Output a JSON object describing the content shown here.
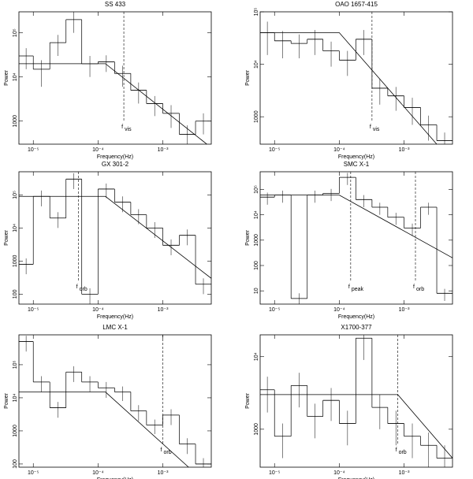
{
  "chart_data": [
    {
      "type": "histogram",
      "title": "SS 433",
      "x_label": "Frequency(Hz)",
      "y_label": "Power",
      "log_x": true,
      "log_y": true,
      "xlim": [
        6e-06,
        0.0056
      ],
      "ylim": [
        300,
        300000
      ],
      "xticks": [
        {
          "value": 1e-05,
          "label": "10⁻⁵"
        },
        {
          "value": 0.0001,
          "label": "10⁻⁴"
        },
        {
          "value": 0.001,
          "label": "10⁻³"
        }
      ],
      "yticks": [
        {
          "value": 100000,
          "label": "10⁵"
        },
        {
          "value": 10000,
          "label": "10⁴"
        },
        1000
      ],
      "bins": [
        6e-06,
        1e-05,
        1.8e-05,
        3.2e-05,
        5.6e-05,
        0.0001,
        0.00018,
        0.00032,
        0.00056,
        0.001,
        0.0018,
        0.0032,
        0.0056
      ],
      "values": [
        30000,
        15000,
        60000,
        200000,
        20000,
        22000,
        12000,
        5000,
        2500,
        1500,
        500,
        1000
      ],
      "errors": [
        15000,
        9000,
        30000,
        100000,
        10000,
        9000,
        6000,
        2500,
        1200,
        800,
        300,
        500
      ],
      "model": {
        "x": [
          6e-06,
          0.00013,
          0.0056
        ],
        "y": [
          20000,
          20000,
          250
        ]
      },
      "markers": [
        {
          "x": 0.00025,
          "label": "f",
          "sub": "vis"
        }
      ]
    },
    {
      "type": "histogram",
      "title": "OAO 1657-415",
      "x_label": "Frequency(Hz)",
      "y_label": "Power",
      "log_x": true,
      "log_y": true,
      "xlim": [
        6e-06,
        0.0056
      ],
      "ylim": [
        300,
        100000
      ],
      "xticks": [
        {
          "value": 1e-05,
          "label": "10⁻⁵"
        },
        {
          "value": 0.0001,
          "label": "10⁻⁴"
        },
        {
          "value": 0.001,
          "label": "10⁻³"
        }
      ],
      "yticks": [
        {
          "value": 100000,
          "label": "10⁵"
        },
        {
          "value": 10000,
          "label": "10⁴"
        },
        1000
      ],
      "bins": [
        6e-06,
        1e-05,
        1.8e-05,
        3.2e-05,
        5.6e-05,
        0.0001,
        0.00018,
        0.00032,
        0.00056,
        0.001,
        0.0018,
        0.0032,
        0.0056
      ],
      "values": [
        40000,
        28000,
        25000,
        30000,
        18000,
        12000,
        30000,
        3500,
        2500,
        1500,
        700,
        350
      ],
      "errors": [
        25000,
        15000,
        12000,
        15000,
        9000,
        6000,
        15000,
        1800,
        1200,
        800,
        350,
        150
      ],
      "model": {
        "x": [
          6e-06,
          0.0001,
          0.0032
        ],
        "y": [
          40000,
          40000,
          300
        ]
      },
      "markers": [
        {
          "x": 0.00032,
          "label": "f",
          "sub": "vis"
        }
      ]
    },
    {
      "type": "histogram",
      "title": "GX 301-2",
      "x_label": "Frequency(Hz)",
      "y_label": "Power",
      "log_x": true,
      "log_y": true,
      "xlim": [
        6e-06,
        0.0056
      ],
      "ylim": [
        50,
        500000
      ],
      "xticks": [
        {
          "value": 1e-05,
          "label": "10⁻⁵"
        },
        {
          "value": 0.0001,
          "label": "10⁻⁴"
        },
        {
          "value": 0.001,
          "label": "10⁻³"
        }
      ],
      "yticks": [
        {
          "value": 100000,
          "label": "10⁵"
        },
        {
          "value": 10000,
          "label": "10⁴"
        },
        1000,
        100
      ],
      "bins": [
        6e-06,
        1e-05,
        1.8e-05,
        3.2e-05,
        5.6e-05,
        0.0001,
        0.00018,
        0.00032,
        0.00056,
        0.001,
        0.0018,
        0.0032,
        0.0056
      ],
      "values": [
        800,
        90000,
        20000,
        300000,
        100,
        150000,
        60000,
        25000,
        10000,
        3000,
        6000,
        200
      ],
      "errors": [
        400,
        45000,
        10000,
        150000,
        50,
        70000,
        30000,
        12000,
        5000,
        1500,
        3000,
        100
      ],
      "model": {
        "x": [
          6e-06,
          0.00013,
          0.0056
        ],
        "y": [
          90000,
          90000,
          300
        ]
      },
      "markers": [
        {
          "x": 5e-05,
          "label": "f",
          "sub": "orb"
        }
      ]
    },
    {
      "type": "histogram",
      "title": "SMC X-1",
      "x_label": "Frequency(Hz)",
      "y_label": "Power",
      "log_x": true,
      "log_y": true,
      "xlim": [
        6e-06,
        0.0056
      ],
      "ylim": [
        3,
        500000
      ],
      "xticks": [
        {
          "value": 1e-05,
          "label": "10⁻⁵"
        },
        {
          "value": 0.0001,
          "label": "10⁻⁴"
        },
        {
          "value": 0.001,
          "label": "10⁻³"
        }
      ],
      "yticks": [
        {
          "value": 100000,
          "label": "10⁵"
        },
        {
          "value": 10000,
          "label": "10⁴"
        },
        1000,
        100,
        10
      ],
      "bins": [
        6e-06,
        1e-05,
        1.8e-05,
        3.2e-05,
        5.6e-05,
        0.0001,
        0.00018,
        0.00032,
        0.00056,
        0.001,
        0.0018,
        0.0032,
        0.0056
      ],
      "values": [
        50000,
        60000,
        5,
        60000,
        70000,
        300000,
        40000,
        20000,
        8000,
        3000,
        20000,
        8
      ],
      "errors": [
        25000,
        30000,
        3,
        30000,
        35000,
        150000,
        20000,
        10000,
        4000,
        1500,
        10000,
        4
      ],
      "model": {
        "x": [
          6e-06,
          0.0001,
          0.0056
        ],
        "y": [
          60000,
          60000,
          200
        ]
      },
      "markers": [
        {
          "x": 0.00015,
          "label": "f",
          "sub": "peak"
        },
        {
          "x": 0.0015,
          "label": "f",
          "sub": "orb"
        }
      ]
    },
    {
      "type": "histogram",
      "title": "LMC X-1",
      "x_label": "Frequency(Hz)",
      "y_label": "Power",
      "log_x": true,
      "log_y": true,
      "xlim": [
        6e-06,
        0.0056
      ],
      "ylim": [
        80,
        800000
      ],
      "xticks": [
        {
          "value": 1e-05,
          "label": "10⁻⁵"
        },
        {
          "value": 0.0001,
          "label": "10⁻⁴"
        },
        {
          "value": 0.001,
          "label": "10⁻³"
        }
      ],
      "yticks": [
        {
          "value": 100000,
          "label": "10⁵"
        },
        {
          "value": 10000,
          "label": "10⁴"
        },
        1000,
        100
      ],
      "bins": [
        6e-06,
        1e-05,
        1.8e-05,
        3.2e-05,
        5.6e-05,
        0.0001,
        0.00018,
        0.00032,
        0.00056,
        0.001,
        0.0018,
        0.0032,
        0.0056
      ],
      "values": [
        500000,
        30000,
        5000,
        60000,
        30000,
        20000,
        15000,
        4000,
        1500,
        3000,
        400,
        100
      ],
      "errors": [
        250000,
        15000,
        2500,
        30000,
        15000,
        10000,
        7000,
        2000,
        700,
        1500,
        200,
        50
      ],
      "model": {
        "x": [
          6e-06,
          0.00013,
          0.0025
        ],
        "y": [
          15000,
          15000,
          80
        ]
      },
      "markers": [
        {
          "x": 0.001,
          "label": "f",
          "sub": "orb"
        }
      ]
    },
    {
      "type": "histogram",
      "title": "X1700-377",
      "x_label": "Frequency(Hz)",
      "y_label": "Power",
      "log_x": true,
      "log_y": true,
      "xlim": [
        6e-06,
        0.0056
      ],
      "ylim": [
        300,
        20000
      ],
      "xticks": [
        {
          "value": 1e-05,
          "label": "10⁻⁵"
        },
        {
          "value": 0.0001,
          "label": "10⁻⁴"
        },
        {
          "value": 0.001,
          "label": "10⁻³"
        }
      ],
      "yticks": [
        {
          "value": 10000,
          "label": "10⁴"
        },
        1000
      ],
      "bins": [
        6e-06,
        1e-05,
        1.8e-05,
        3.2e-05,
        5.6e-05,
        0.0001,
        0.00018,
        0.00032,
        0.00056,
        0.001,
        0.0018,
        0.0032,
        0.0056
      ],
      "values": [
        3500,
        800,
        4000,
        1500,
        2500,
        1200,
        18000,
        2000,
        1200,
        800,
        600,
        400
      ],
      "errors": [
        1800,
        400,
        2000,
        750,
        1200,
        600,
        9000,
        1000,
        600,
        400,
        300,
        200
      ],
      "model": {
        "x": [
          6e-06,
          0.0008,
          0.0056
        ],
        "y": [
          3000,
          3000,
          400
        ]
      },
      "markers": [
        {
          "x": 0.0008,
          "label": "f",
          "sub": "orb"
        }
      ]
    }
  ]
}
